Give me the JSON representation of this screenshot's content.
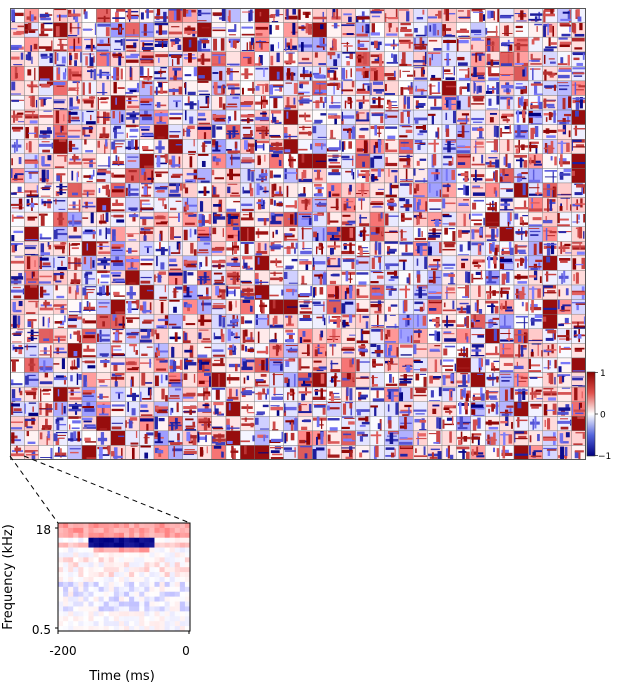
{
  "chart_data": [
    {
      "type": "heatmap",
      "panel": "mosaic",
      "description_grid": {
        "rows": 31,
        "cols": 40
      },
      "colormap": {
        "low": "#1a237e",
        "mid": "#ffffff",
        "high": "#b71c1c"
      },
      "value_range": [
        -1,
        1
      ]
    },
    {
      "type": "heatmap",
      "panel": "zoom",
      "xlabel": "Time (ms)",
      "ylabel": "Frequency (kHz)",
      "xticks": [
        "-200",
        "0"
      ],
      "yticks": [
        "18",
        "0.5"
      ],
      "xlim": [
        -200,
        0
      ],
      "ylim": [
        0.5,
        18
      ]
    }
  ],
  "colorbar": {
    "ticks": [
      "1",
      "0",
      "−1"
    ],
    "values": [
      1,
      0,
      -1
    ]
  },
  "zoom": {
    "xlabel": "Time (ms)",
    "ylabel": "Frequency (kHz)",
    "x_min_label": "-200",
    "x_max_label": "0",
    "y_max_label": "18",
    "y_min_label": "0.5"
  }
}
